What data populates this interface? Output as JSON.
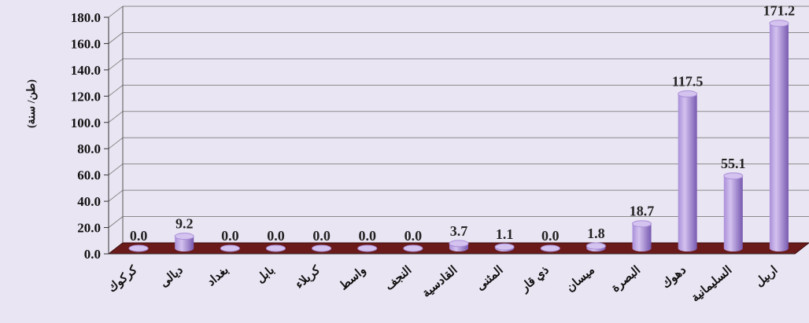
{
  "chart_data": {
    "type": "bar",
    "title": "",
    "xlabel": "",
    "ylabel": "(طن/ سنة)",
    "ylim": [
      0,
      180
    ],
    "yticks": [
      "0.0",
      "20.0",
      "40.0",
      "60.0",
      "80.0",
      "100.0",
      "120.0",
      "140.0",
      "160.0",
      "180.0"
    ],
    "categories": [
      "كركوك",
      "ديالى",
      "بغداد",
      "بابل",
      "كربلاء",
      "واسط",
      "النجف",
      "القادسية",
      "المثنى",
      "ذي قار",
      "ميسان",
      "البصرة",
      "دهوك",
      "السليمانية",
      "اربيل"
    ],
    "values": [
      0.0,
      9.2,
      0.0,
      0.0,
      0.0,
      0.0,
      0.0,
      3.7,
      1.1,
      0.0,
      1.8,
      18.7,
      117.5,
      55.1,
      171.2
    ],
    "data_labels": [
      "0.0",
      "9.2",
      "0.0",
      "0.0",
      "0.0",
      "0.0",
      "0.0",
      "3.7",
      "1.1",
      "0.0",
      "1.8",
      "18.7",
      "117.5",
      "55.1",
      "171.2"
    ],
    "grid": true,
    "legend": "none",
    "colors": {
      "background": "#eae5f3",
      "bar_light": "#d4c2ef",
      "bar_mid": "#a98fd8",
      "bar_dark": "#7759b0",
      "floor": "#6b1a1a",
      "grid": "#8a8a8a"
    }
  }
}
